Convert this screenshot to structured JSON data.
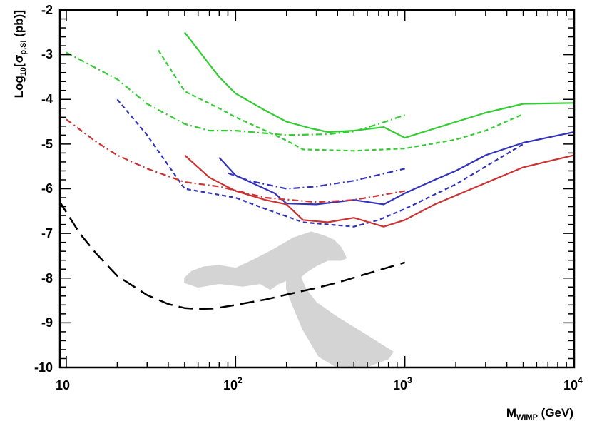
{
  "chart_data": {
    "type": "line",
    "x_scale": "log10",
    "xlim": [
      10,
      10000
    ],
    "ylim": [
      -10,
      -2
    ],
    "x_tick_labels": [
      {
        "value": 10,
        "base": "10",
        "exp": ""
      },
      {
        "value": 100,
        "base": "10",
        "exp": "2"
      },
      {
        "value": 1000,
        "base": "10",
        "exp": "3"
      },
      {
        "value": 10000,
        "base": "10",
        "exp": "4"
      }
    ],
    "y_ticks": [
      -10,
      -9,
      -8,
      -7,
      -6,
      -5,
      -4,
      -3,
      -2
    ],
    "y_tick_labels": [
      "-10",
      "-9",
      "-8",
      "-7",
      "-6",
      "-5",
      "-4",
      "-3",
      "-2"
    ],
    "xlabel": {
      "main": "M",
      "sub": "WIMP",
      "unit": " (GeV)"
    },
    "ylabel": {
      "pre": "Log",
      "sub1": "10",
      "bracket": "[σ",
      "sub2": "p,SI",
      "post": " (pb)]"
    },
    "colors": {
      "green": "#33cc33",
      "blue": "#3333bb",
      "red": "#cc3333",
      "black": "#000000",
      "region": "#d4d4d4"
    },
    "series": [
      {
        "name": "green-solid",
        "color": "green",
        "style": "solid",
        "points": [
          [
            50,
            -2.5
          ],
          [
            80,
            -3.5
          ],
          [
            100,
            -3.87
          ],
          [
            150,
            -4.25
          ],
          [
            200,
            -4.5
          ],
          [
            280,
            -4.65
          ],
          [
            350,
            -4.73
          ],
          [
            500,
            -4.7
          ],
          [
            750,
            -4.62
          ],
          [
            1000,
            -4.86
          ],
          [
            1500,
            -4.65
          ],
          [
            3000,
            -4.3
          ],
          [
            5000,
            -4.1
          ],
          [
            10000,
            -4.08
          ]
        ]
      },
      {
        "name": "green-dashed",
        "color": "green",
        "style": "dashed",
        "points": [
          [
            35,
            -2.9
          ],
          [
            50,
            -3.82
          ],
          [
            80,
            -4.2
          ],
          [
            100,
            -4.4
          ],
          [
            150,
            -4.7
          ],
          [
            200,
            -4.92
          ],
          [
            250,
            -5.12
          ],
          [
            500,
            -5.15
          ],
          [
            1000,
            -5.1
          ],
          [
            2000,
            -4.9
          ],
          [
            3000,
            -4.7
          ],
          [
            5000,
            -4.33
          ]
        ]
      },
      {
        "name": "green-dashdot",
        "color": "green",
        "style": "dashdot",
        "points": [
          [
            10,
            -2.95
          ],
          [
            20,
            -3.55
          ],
          [
            30,
            -4.1
          ],
          [
            50,
            -4.55
          ],
          [
            70,
            -4.7
          ],
          [
            100,
            -4.7
          ],
          [
            200,
            -4.8
          ],
          [
            350,
            -4.78
          ],
          [
            500,
            -4.72
          ],
          [
            700,
            -4.55
          ],
          [
            1000,
            -4.35
          ]
        ]
      },
      {
        "name": "blue-solid",
        "color": "blue",
        "style": "solid",
        "points": [
          [
            80,
            -5.3
          ],
          [
            100,
            -5.7
          ],
          [
            170,
            -6.1
          ],
          [
            200,
            -6.33
          ],
          [
            300,
            -6.35
          ],
          [
            500,
            -6.25
          ],
          [
            750,
            -6.35
          ],
          [
            1000,
            -6.1
          ],
          [
            1500,
            -5.8
          ],
          [
            2000,
            -5.6
          ],
          [
            3000,
            -5.25
          ],
          [
            5000,
            -4.97
          ],
          [
            10000,
            -4.73
          ]
        ]
      },
      {
        "name": "blue-dashed",
        "color": "blue",
        "style": "dashed",
        "points": [
          [
            20,
            -4.0
          ],
          [
            30,
            -4.8
          ],
          [
            50,
            -6.0
          ],
          [
            100,
            -6.2
          ],
          [
            150,
            -6.45
          ],
          [
            250,
            -6.75
          ],
          [
            500,
            -6.85
          ],
          [
            700,
            -6.7
          ],
          [
            1000,
            -6.45
          ],
          [
            2000,
            -5.9
          ],
          [
            5000,
            -5.0
          ]
        ]
      },
      {
        "name": "blue-dashdot",
        "color": "blue",
        "style": "dashdot",
        "points": [
          [
            90,
            -5.65
          ],
          [
            120,
            -5.82
          ],
          [
            150,
            -5.9
          ],
          [
            200,
            -6.0
          ],
          [
            300,
            -5.95
          ],
          [
            500,
            -5.82
          ],
          [
            1000,
            -5.55
          ]
        ]
      },
      {
        "name": "red-solid",
        "color": "red",
        "style": "solid",
        "points": [
          [
            50,
            -5.25
          ],
          [
            70,
            -5.75
          ],
          [
            100,
            -6.05
          ],
          [
            150,
            -6.25
          ],
          [
            200,
            -6.35
          ],
          [
            250,
            -6.7
          ],
          [
            350,
            -6.75
          ],
          [
            500,
            -6.65
          ],
          [
            750,
            -6.85
          ],
          [
            1000,
            -6.7
          ],
          [
            1500,
            -6.35
          ],
          [
            2000,
            -6.15
          ],
          [
            5000,
            -5.52
          ],
          [
            10000,
            -5.25
          ]
        ]
      },
      {
        "name": "red-dashdot",
        "color": "red",
        "style": "dashdot",
        "points": [
          [
            10,
            -4.45
          ],
          [
            15,
            -4.95
          ],
          [
            20,
            -5.25
          ],
          [
            30,
            -5.55
          ],
          [
            50,
            -5.85
          ],
          [
            80,
            -5.95
          ],
          [
            150,
            -6.2
          ],
          [
            300,
            -6.3
          ],
          [
            500,
            -6.25
          ],
          [
            1000,
            -6.05
          ]
        ]
      },
      {
        "name": "black-longdash",
        "color": "black",
        "style": "longdash",
        "points": [
          [
            9,
            -6.25
          ],
          [
            12,
            -7.0
          ],
          [
            15,
            -7.45
          ],
          [
            20,
            -7.95
          ],
          [
            30,
            -8.38
          ],
          [
            40,
            -8.58
          ],
          [
            50,
            -8.67
          ],
          [
            60,
            -8.69
          ],
          [
            75,
            -8.68
          ],
          [
            100,
            -8.6
          ],
          [
            150,
            -8.48
          ],
          [
            200,
            -8.37
          ],
          [
            300,
            -8.22
          ],
          [
            400,
            -8.1
          ],
          [
            600,
            -7.9
          ],
          [
            1000,
            -7.65
          ]
        ]
      }
    ],
    "shaded_region": {
      "name": "allowed-parameter-region",
      "upper_lobe": [
        [
          50,
          -8.0
        ],
        [
          55,
          -7.85
        ],
        [
          65,
          -7.75
        ],
        [
          80,
          -7.72
        ],
        [
          100,
          -7.78
        ],
        [
          130,
          -7.58
        ],
        [
          170,
          -7.35
        ],
        [
          220,
          -7.1
        ],
        [
          280,
          -6.97
        ],
        [
          330,
          -7.05
        ],
        [
          380,
          -7.15
        ],
        [
          420,
          -7.32
        ],
        [
          450,
          -7.55
        ],
        [
          420,
          -7.6
        ],
        [
          350,
          -7.6
        ],
        [
          300,
          -7.72
        ],
        [
          260,
          -7.87
        ],
        [
          220,
          -8.12
        ],
        [
          200,
          -8.05
        ],
        [
          180,
          -8.12
        ],
        [
          160,
          -8.25
        ],
        [
          140,
          -8.12
        ],
        [
          110,
          -8.18
        ],
        [
          80,
          -8.12
        ],
        [
          60,
          -8.2
        ],
        [
          50,
          -8.1
        ]
      ],
      "stem": [
        [
          200,
          -8.05
        ],
        [
          240,
          -7.95
        ],
        [
          260,
          -8.25
        ],
        [
          300,
          -8.55
        ],
        [
          400,
          -8.88
        ],
        [
          550,
          -9.2
        ],
        [
          700,
          -9.45
        ],
        [
          850,
          -9.65
        ],
        [
          800,
          -9.8
        ],
        [
          600,
          -9.98
        ],
        [
          400,
          -10.0
        ],
        [
          310,
          -9.75
        ],
        [
          250,
          -9.15
        ],
        [
          220,
          -8.65
        ],
        [
          200,
          -8.25
        ]
      ]
    }
  }
}
